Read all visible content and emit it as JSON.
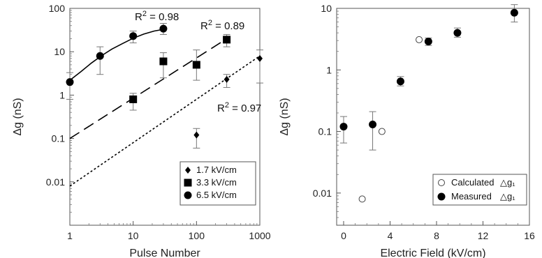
{
  "chart_data": [
    {
      "type": "scatter",
      "xlabel": "Pulse Number",
      "ylabel": "Δg (nS)",
      "xscale": "log",
      "yscale": "log",
      "xlim": [
        1,
        1000
      ],
      "ylim": [
        0.001,
        100
      ],
      "xticks": [
        1,
        10,
        100,
        1000
      ],
      "xtick_labels": [
        "1",
        "10",
        "100",
        "1000"
      ],
      "yticks": [
        0.01,
        0.1,
        1,
        10,
        100
      ],
      "ytick_labels": [
        "0.01",
        "0.1",
        "1",
        "10",
        "100"
      ],
      "grid": false,
      "legend_position": "bottom-right",
      "series": [
        {
          "name": "1.7 kV/cm",
          "marker": "diamond",
          "x": [
            100,
            300,
            1000
          ],
          "y": [
            0.12,
            2.3,
            7
          ],
          "err_low": [
            0.06,
            1.5,
            1.9
          ],
          "err_high": [
            0.17,
            3.0,
            11
          ],
          "fit": "short-dash",
          "fit_x": [
            1,
            1000
          ],
          "fit_y": [
            0.008,
            8
          ],
          "r2_label": "R2 = 0.97"
        },
        {
          "name": "3.3 kV/cm",
          "marker": "square",
          "x": [
            10,
            30,
            100,
            300
          ],
          "y": [
            0.8,
            6,
            5,
            19
          ],
          "err_low": [
            0.45,
            2.5,
            2.2,
            13
          ],
          "err_high": [
            1.1,
            9.5,
            11,
            25
          ],
          "fit": "long-dash",
          "fit_x": [
            1,
            300
          ],
          "fit_y": [
            0.1,
            20
          ],
          "r2_label": "R2 = 0.89"
        },
        {
          "name": "6.5 kV/cm",
          "marker": "circle",
          "x": [
            1,
            3,
            10,
            30
          ],
          "y": [
            2,
            8,
            23,
            34
          ],
          "err_low": [
            0.8,
            3,
            16,
            25
          ],
          "err_high": [
            3.3,
            13,
            30,
            45
          ],
          "fit": "solid",
          "fit_x": [
            1,
            1.5,
            2.2,
            3.2,
            4.6,
            6.8,
            10,
            14.7,
            21.5,
            31
          ],
          "fit_y": [
            2.2,
            3.5,
            5.5,
            8.2,
            11.5,
            15.5,
            20.5,
            25.5,
            30,
            33
          ],
          "r2_label": "R2 = 0.98"
        }
      ]
    },
    {
      "type": "scatter",
      "xlabel": "Electric Field (kV/cm)",
      "ylabel": "Δg (nS)",
      "xscale": "linear",
      "yscale": "log",
      "xlim": [
        -0.6,
        16
      ],
      "ylim": [
        0.003,
        10
      ],
      "xticks": [
        0,
        4,
        8,
        12,
        16
      ],
      "xtick_labels": [
        "0",
        "4",
        "8",
        "12",
        "16"
      ],
      "yticks": [
        0.01,
        0.1,
        1,
        10
      ],
      "ytick_labels": [
        "0.01",
        "0.1",
        "1",
        "10"
      ],
      "grid": false,
      "legend_position": "bottom-right",
      "series": [
        {
          "name": "Calculated Δg1",
          "legend_label": "Calculated",
          "legend_symbol": "△g₁",
          "marker": "open-circle",
          "x": [
            1.6,
            3.3,
            6.5
          ],
          "y": [
            0.008,
            0.1,
            3.1
          ]
        },
        {
          "name": "Measured Δg1",
          "legend_label": "Measured",
          "legend_symbol": "△g₁",
          "marker": "filled-circle",
          "x": [
            0,
            2.5,
            4.9,
            7.3,
            9.8,
            14.7
          ],
          "y": [
            0.12,
            0.13,
            0.65,
            2.9,
            4,
            8.5
          ],
          "err_low": [
            0.065,
            0.05,
            0.55,
            2.5,
            3.4,
            6
          ],
          "err_high": [
            0.175,
            0.21,
            0.78,
            3.3,
            4.8,
            11.5
          ]
        }
      ]
    }
  ]
}
